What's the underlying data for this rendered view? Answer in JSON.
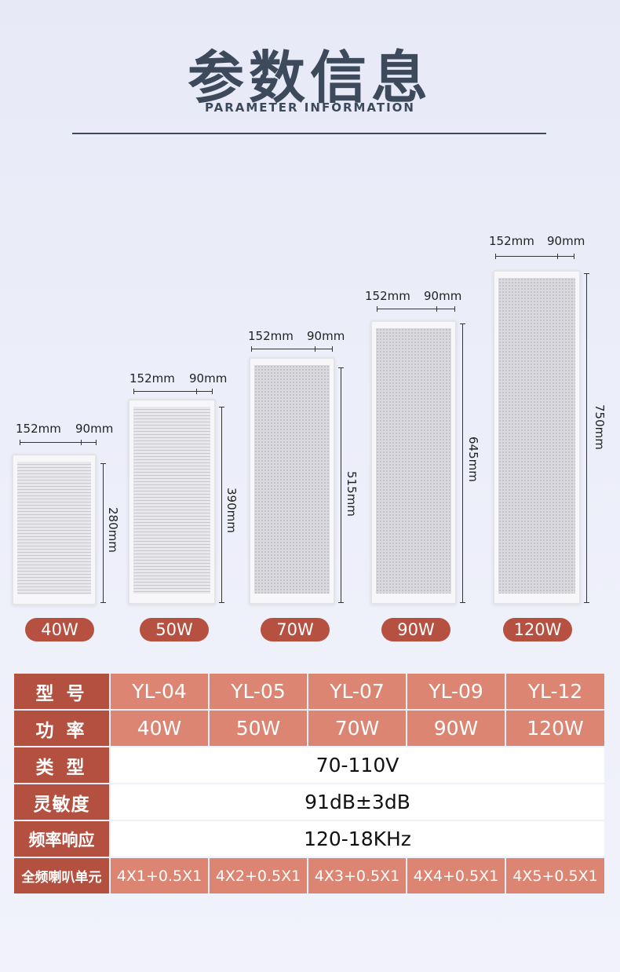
{
  "header": {
    "title": "参数信息",
    "subtitle": "PARAMETER INFORMATION"
  },
  "speakers": [
    {
      "width_label": "152mm",
      "depth_label": "90mm",
      "height_label": "280mm",
      "power": "40W"
    },
    {
      "width_label": "152mm",
      "depth_label": "90mm",
      "height_label": "390mm",
      "power": "50W"
    },
    {
      "width_label": "152mm",
      "depth_label": "90mm",
      "height_label": "515mm",
      "power": "70W"
    },
    {
      "width_label": "152mm",
      "depth_label": "90mm",
      "height_label": "645mm",
      "power": "90W"
    },
    {
      "width_label": "152mm",
      "depth_label": "90mm",
      "height_label": "750mm",
      "power": "120W"
    }
  ],
  "table": {
    "model_label": "型 号",
    "models": [
      "YL-04",
      "YL-05",
      "YL-07",
      "YL-09",
      "YL-12"
    ],
    "power_label": "功 率",
    "powers": [
      "40W",
      "50W",
      "70W",
      "90W",
      "120W"
    ],
    "type_label": "类 型",
    "type_value": "70-110V",
    "sensitivity_label": "灵敏度",
    "sensitivity_value": "91dB±3dB",
    "freq_label": "频率响应",
    "freq_value": "120-18KHz",
    "driver_label": "全频喇叭单元",
    "drivers": [
      "4X1+0.5X1",
      "4X2+0.5X1",
      "4X3+0.5X1",
      "4X4+0.5X1",
      "4X5+0.5X1"
    ]
  },
  "colors": {
    "header_cell": "#b4503f",
    "value_cell": "#dd8573",
    "pill": "#b65040",
    "title": "#3d4a5b"
  }
}
